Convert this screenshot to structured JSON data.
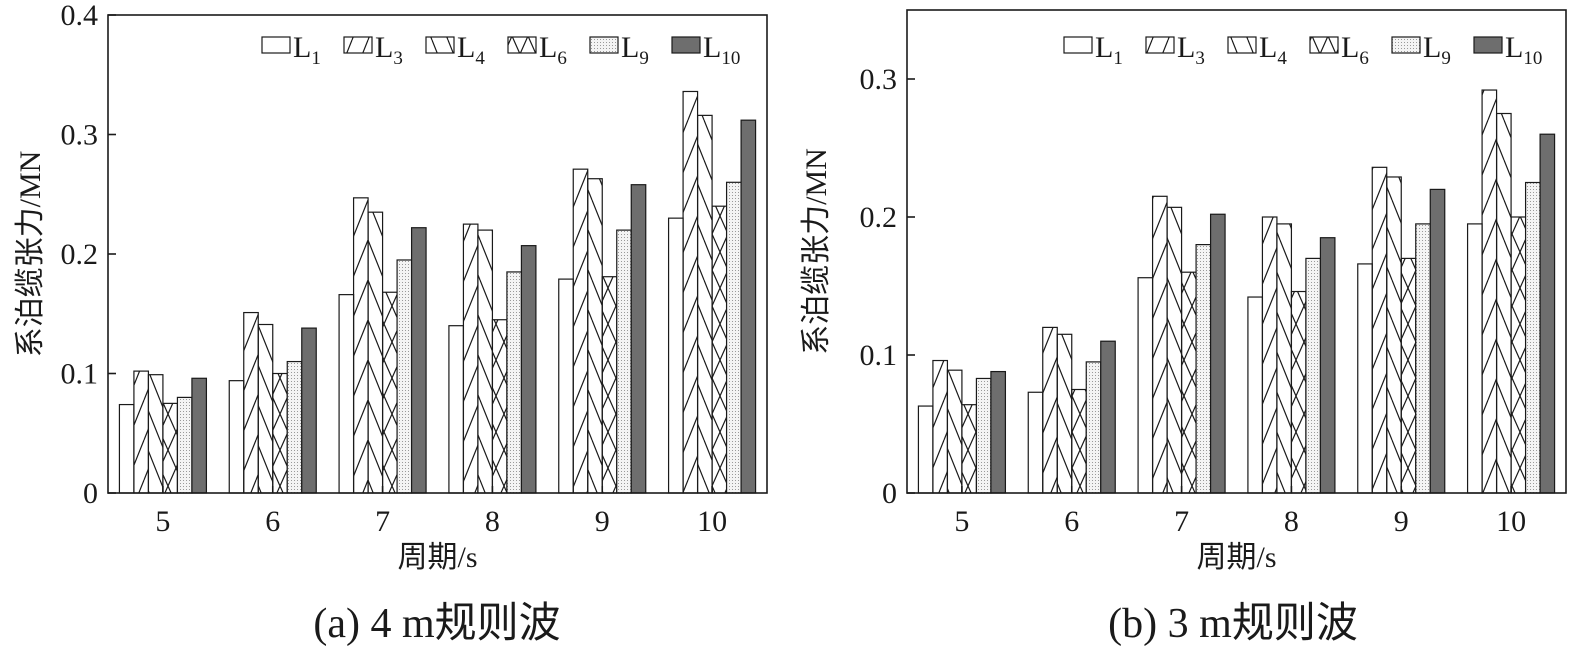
{
  "chart_data": [
    {
      "type": "bar",
      "caption": "(a) 4 m规则波",
      "xlabel": "周期/s",
      "ylabel": "系泊缆张力/MN",
      "ylim": [
        0,
        0.4
      ],
      "yticks": [
        0,
        0.1,
        0.2,
        0.3,
        0.4
      ],
      "ytick_labels": [
        "0",
        "0.1",
        "0.2",
        "0.3",
        "0.4"
      ],
      "categories": [
        "5",
        "6",
        "7",
        "8",
        "9",
        "10"
      ],
      "legend_position": "top-right",
      "series": [
        {
          "name": "L1",
          "base": "L",
          "sub": "1",
          "pattern": "none",
          "values": [
            0.074,
            0.094,
            0.166,
            0.14,
            0.179,
            0.23
          ]
        },
        {
          "name": "L3",
          "base": "L",
          "sub": "3",
          "pattern": "fwd",
          "values": [
            0.102,
            0.151,
            0.247,
            0.225,
            0.271,
            0.336
          ]
        },
        {
          "name": "L4",
          "base": "L",
          "sub": "4",
          "pattern": "back",
          "values": [
            0.099,
            0.141,
            0.235,
            0.22,
            0.263,
            0.316
          ]
        },
        {
          "name": "L6",
          "base": "L",
          "sub": "6",
          "pattern": "cross",
          "values": [
            0.075,
            0.1,
            0.168,
            0.145,
            0.181,
            0.24
          ]
        },
        {
          "name": "L9",
          "base": "L",
          "sub": "9",
          "pattern": "dots",
          "values": [
            0.08,
            0.11,
            0.195,
            0.185,
            0.22,
            0.26
          ]
        },
        {
          "name": "L10",
          "base": "L",
          "sub": "10",
          "pattern": "solid",
          "values": [
            0.096,
            0.138,
            0.222,
            0.207,
            0.258,
            0.312
          ]
        }
      ]
    },
    {
      "type": "bar",
      "caption": "(b) 3 m规则波",
      "xlabel": "周期/s",
      "ylabel": "系泊缆张力/MN",
      "ylim": [
        0,
        0.35
      ],
      "yticks": [
        0,
        0.1,
        0.2,
        0.3
      ],
      "ytick_labels": [
        "0",
        "0.1",
        "0.2",
        "0.3"
      ],
      "categories": [
        "5",
        "6",
        "7",
        "8",
        "9",
        "10"
      ],
      "legend_position": "top-right",
      "series": [
        {
          "name": "L1",
          "base": "L",
          "sub": "1",
          "pattern": "none",
          "values": [
            0.063,
            0.073,
            0.156,
            0.142,
            0.166,
            0.195
          ]
        },
        {
          "name": "L3",
          "base": "L",
          "sub": "3",
          "pattern": "fwd",
          "values": [
            0.096,
            0.12,
            0.215,
            0.2,
            0.236,
            0.292
          ]
        },
        {
          "name": "L4",
          "base": "L",
          "sub": "4",
          "pattern": "back",
          "values": [
            0.089,
            0.115,
            0.207,
            0.195,
            0.229,
            0.275
          ]
        },
        {
          "name": "L6",
          "base": "L",
          "sub": "6",
          "pattern": "cross",
          "values": [
            0.064,
            0.075,
            0.16,
            0.146,
            0.17,
            0.2
          ]
        },
        {
          "name": "L9",
          "base": "L",
          "sub": "9",
          "pattern": "dots",
          "values": [
            0.083,
            0.095,
            0.18,
            0.17,
            0.195,
            0.225
          ]
        },
        {
          "name": "L10",
          "base": "L",
          "sub": "10",
          "pattern": "solid",
          "values": [
            0.088,
            0.11,
            0.202,
            0.185,
            0.22,
            0.26
          ]
        }
      ]
    }
  ],
  "colors": {
    "ink": "#1a1a1a",
    "bar_fill": "#ffffff",
    "l9_fill": "#ececec",
    "l10_fill": "#6e6e6e"
  }
}
